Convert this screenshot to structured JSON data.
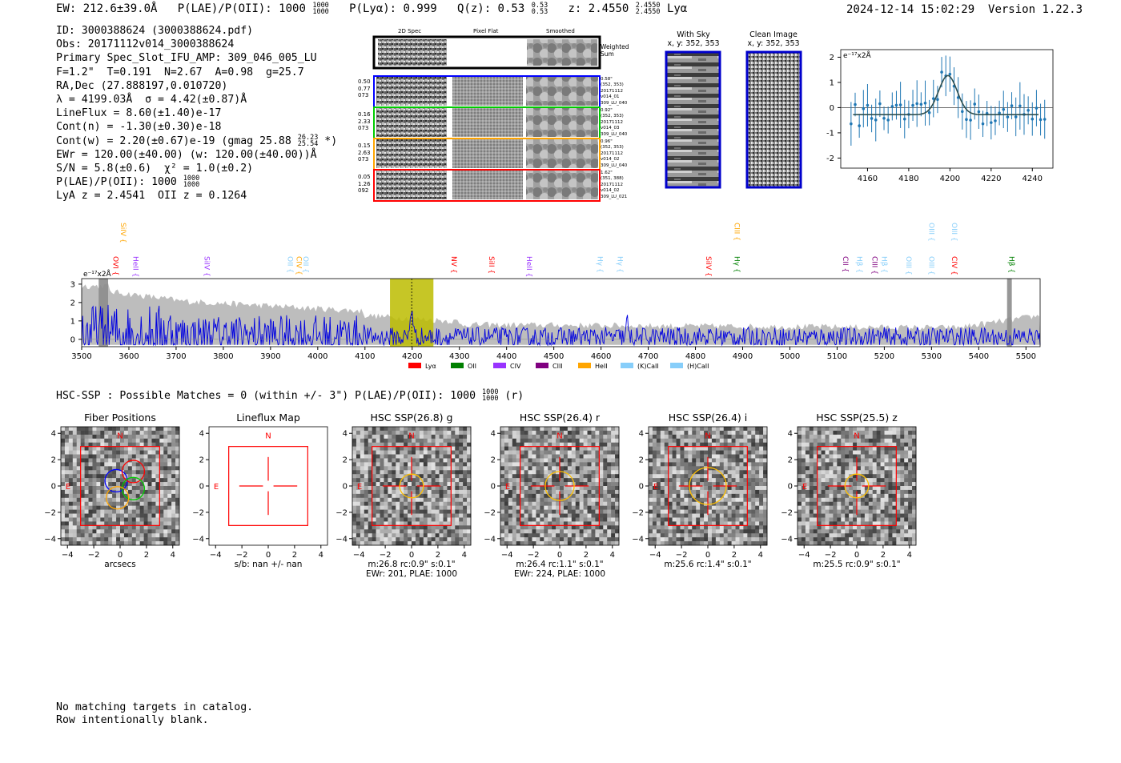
{
  "header": {
    "ew": "EW: 212.6±39.0Å",
    "plae_label": "P(LAE)/P(OII): 1000",
    "plae_hi": "1000",
    "plae_lo": "1000",
    "plya": "P(Lyα): 0.999",
    "qz_label": "Q(z): 0.53",
    "qz_hi": "0.53",
    "qz_lo": "0.53",
    "z_label": "z: 2.4550",
    "z_hi": "2.4550",
    "z_lo": "2.4550",
    "z_line": "Lyα",
    "timestamp": "2024-12-14 15:02:29",
    "version": "Version 1.22.3"
  },
  "info": {
    "id": "ID: 3000388624 (3000388624.pdf)",
    "obs": "Obs: 20171112v014_3000388624",
    "primary": "Primary Spec_Slot_IFU_AMP: 309_046_005_LU",
    "params": "F=1.2\"  T=0.191  N=2.67  A=0.98  g=25.7",
    "radec": "RA,Dec (27.888197,0.010720)",
    "lambda": "λ = 4199.03Å  σ = 4.42(±0.87)Å",
    "lineflux": "LineFlux = 8.60(±1.40)e-17",
    "contn": "Cont(n) = -1.30(±0.30)e-18",
    "contw": "Cont(w) = 2.20(±0.67)e-19 (gmag 25.88",
    "contw_hi": "26.23",
    "contw_lo": "25.54",
    "contw_end": " *)",
    "ewr": "EWr = 120.00(±40.00) (w: 120.00(±40.00))Å",
    "sn": "S/N = 5.8(±0.6)  χ² = 1.0(±0.2)",
    "plae": "P(LAE)/P(OII): 1000",
    "plae_hi": "1000",
    "plae_lo": "1000",
    "lya": "LyA z = 2.4541  OII z = 0.1264"
  },
  "cutouts": {
    "col_headers": [
      "2D Spec",
      "Pixel Flat",
      "Smoothed"
    ],
    "weighted_sum": "Weighted\nSum",
    "rows": [
      {
        "left": "0.50\n0.77\n073",
        "right": "0.58\"\n(352, 353)\n20171112\nv014_01\n309_LU_040",
        "color": "#0000ff"
      },
      {
        "left": "0.16\n2.33\n073",
        "right": "0.92\"\n(352, 353)\n20171112\nv014_03\n309_LU_040",
        "color": "#00cc00"
      },
      {
        "left": "0.15\n2.63\n073",
        "right": "0.96\"\n(352, 353)\n20171112\nv014_02\n309_LU_040",
        "color": "#ffa500"
      },
      {
        "left": "0.05\n1.26\n092",
        "right": "1.62\"\n(351, 388)\n20171112\nv014_02\n309_LU_021",
        "color": "#ff0000"
      }
    ],
    "with_sky": "With Sky",
    "with_sky_coords": "x, y: 352, 353",
    "clean": "Clean Image",
    "clean_coords": "x, y: 352, 353"
  },
  "zoom_plot": {
    "unit": "e⁻¹⁷x2Å",
    "xticks": [
      4160,
      4180,
      4200,
      4220,
      4240
    ],
    "yticks": [
      -2,
      -1,
      0,
      1,
      2
    ],
    "xlim": [
      4147,
      4250
    ],
    "ylim": [
      -2.4,
      2.3
    ]
  },
  "spectrum": {
    "unit": "e⁻¹⁷x2Å",
    "xticks": [
      3500,
      3600,
      3700,
      3800,
      3900,
      4000,
      4100,
      4200,
      4300,
      4400,
      4500,
      4600,
      4700,
      4800,
      4900,
      5000,
      5100,
      5200,
      5300,
      5400,
      5500
    ],
    "yticks": [
      0,
      1,
      2,
      3
    ],
    "xlim": [
      3500,
      5530
    ],
    "ylim": [
      -0.4,
      3.3
    ],
    "line_labels": [
      {
        "name": "OVI",
        "w": 3562,
        "color": "#ff0000",
        "tier": 1
      },
      {
        "name": "SiIV",
        "w": 3578,
        "color": "#ffa500",
        "tier": 0
      },
      {
        "name": "HeII",
        "w": 3604,
        "color": "#9933ff",
        "tier": 1
      },
      {
        "name": "SiIV",
        "w": 3755,
        "color": "#9933ff",
        "tier": 1
      },
      {
        "name": "OII",
        "w": 3932,
        "color": "#87cefa",
        "tier": 1
      },
      {
        "name": "CIV",
        "w": 3950,
        "color": "#ffa500",
        "tier": 1
      },
      {
        "name": "OII",
        "w": 3965,
        "color": "#87cefa",
        "tier": 1
      },
      {
        "name": "NV",
        "w": 4278,
        "color": "#ff0000",
        "tier": 1
      },
      {
        "name": "SiII",
        "w": 4358,
        "color": "#ff0000",
        "tier": 1
      },
      {
        "name": "HeII",
        "w": 4438,
        "color": "#9933ff",
        "tier": 1
      },
      {
        "name": "Hγ",
        "w": 4588,
        "color": "#87cefa",
        "tier": 1
      },
      {
        "name": "Hγ",
        "w": 4630,
        "color": "#87cefa",
        "tier": 1
      },
      {
        "name": "SiIV",
        "w": 4818,
        "color": "#ff0000",
        "tier": 1
      },
      {
        "name": "CIII",
        "w": 4878,
        "color": "#ffa500",
        "tier": 0
      },
      {
        "name": "Hγ",
        "w": 4878,
        "color": "#008000",
        "tier": 1
      },
      {
        "name": "CII",
        "w": 5108,
        "color": "#800080",
        "tier": 1
      },
      {
        "name": "Hβ",
        "w": 5137,
        "color": "#87cefa",
        "tier": 1
      },
      {
        "name": "CIII",
        "w": 5170,
        "color": "#800080",
        "tier": 1
      },
      {
        "name": "Hβ",
        "w": 5190,
        "color": "#87cefa",
        "tier": 1
      },
      {
        "name": "OIII",
        "w": 5242,
        "color": "#87cefa",
        "tier": 1
      },
      {
        "name": "OIII",
        "w": 5290,
        "color": "#87cefa",
        "tier": 0
      },
      {
        "name": "OIII",
        "w": 5290,
        "color": "#87cefa",
        "tier": 1
      },
      {
        "name": "OIII",
        "w": 5338,
        "color": "#87cefa",
        "tier": 0
      },
      {
        "name": "CIV",
        "w": 5338,
        "color": "#ff0000",
        "tier": 1
      },
      {
        "name": "Hβ",
        "w": 5460,
        "color": "#008000",
        "tier": 1
      }
    ],
    "legend": [
      {
        "name": "Lyα",
        "color": "#ff0000"
      },
      {
        "name": "OII",
        "color": "#008000"
      },
      {
        "name": "CIV",
        "color": "#9933ff"
      },
      {
        "name": "CIII",
        "color": "#800080"
      },
      {
        "name": "HeII",
        "color": "#ffa500"
      },
      {
        "name": "(K)CaII",
        "color": "#87cefa"
      },
      {
        "name": "(H)CaII",
        "color": "#87cefa"
      }
    ]
  },
  "hsc": {
    "summary": "HSC-SSP : Possible Matches = 0 (within +/- 3\")  P(LAE)/P(OII): 1000",
    "summary_hi": "1000",
    "summary_lo": "1000",
    "summary_end": "(r)",
    "ticks": [
      -4,
      -2,
      0,
      2,
      4
    ],
    "panels": [
      {
        "title": "Fiber Positions",
        "line1": "arcsecs",
        "line2": ""
      },
      {
        "title": "Lineflux Map",
        "line1": "s/b: nan +/- nan",
        "line2": ""
      },
      {
        "title": "HSC SSP(26.8) g",
        "line1": "m:26.8 rc:0.9\"  s:0.1\"",
        "line2": "EWr: 201, PLAE: 1000"
      },
      {
        "title": "HSC SSP(26.4) r",
        "line1": "m:26.4 rc:1.1\"  s:0.1\"",
        "line2": "EWr: 224, PLAE: 1000"
      },
      {
        "title": "HSC SSP(26.4) i",
        "line1": "m:25.6 rc:1.4\"  s:0.1\"",
        "line2": ""
      },
      {
        "title": "HSC SSP(25.5) z",
        "line1": "m:25.5 rc:0.9\"  s:0.1\"",
        "line2": ""
      }
    ],
    "north": "N",
    "east": "E"
  },
  "footer": {
    "line1": "No matching targets in catalog.",
    "line2": "Row intentionally blank."
  }
}
